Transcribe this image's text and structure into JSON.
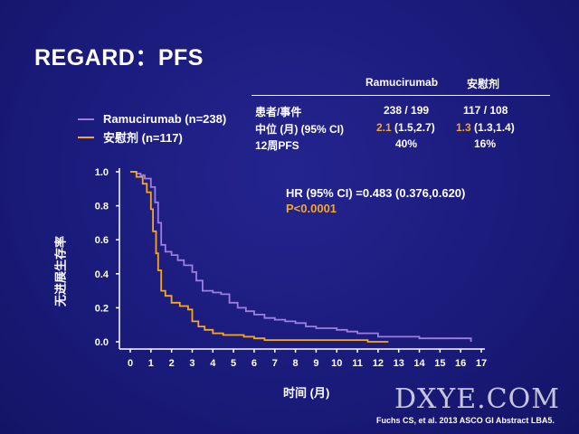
{
  "slide": {
    "title": "REGARD：PFS",
    "source": "Fuchs CS, et al. 2013 ASCO GI Abstract LBA5.",
    "watermark": "DXYE.COM"
  },
  "table": {
    "headers": [
      "Ramucirumab",
      "安慰剂"
    ],
    "rows": [
      {
        "label": "患者/事件",
        "ram": "238 / 199",
        "pla": "117 / 108"
      },
      {
        "label": "中位 (月) (95% CI)",
        "ram_main": "2.1",
        "ram_ci": "(1.5,2.7)",
        "pla_main": "1.3",
        "pla_ci": "(1.3,1.4)"
      },
      {
        "label": "12周PFS",
        "ram": "40%",
        "pla": "16%"
      }
    ]
  },
  "stats": {
    "hr": "HR (95% CI) =0.483 (0.376,0.620)",
    "p": "P<0.0001"
  },
  "colors": {
    "ramucirumab": "#9a7fe0",
    "placebo": "#f5a623",
    "background": "#1a1a7a"
  },
  "chart_data": {
    "type": "line",
    "xlabel": "时间 (月)",
    "ylabel": "无进展生存率",
    "xlim": [
      0,
      17
    ],
    "ylim": [
      0,
      1.0
    ],
    "xticks": [
      "0",
      "1",
      "2",
      "3",
      "4",
      "5",
      "6",
      "7",
      "8",
      "9",
      "10",
      "11",
      "12",
      "13",
      "14",
      "15",
      "16",
      "17"
    ],
    "yticks": [
      "0.0",
      "0.2",
      "0.4",
      "0.6",
      "0.8",
      "1.0"
    ],
    "legend": [
      "Ramucirumab (n=238)",
      "安慰剂 (n=117)"
    ],
    "series": [
      {
        "name": "Ramucirumab (n=238)",
        "x": [
          0,
          0.3,
          0.5,
          0.7,
          1.0,
          1.2,
          1.35,
          1.5,
          1.7,
          2.0,
          2.3,
          2.6,
          3.0,
          3.2,
          3.5,
          4.0,
          4.4,
          4.8,
          5.2,
          5.6,
          6.0,
          6.5,
          7.0,
          7.5,
          8.0,
          8.5,
          9.0,
          9.5,
          10.0,
          10.5,
          11.0,
          11.5,
          12.0,
          13.0,
          14.0,
          15.0,
          16.0,
          16.5
        ],
        "y": [
          1.0,
          0.99,
          0.98,
          0.96,
          0.91,
          0.82,
          0.7,
          0.57,
          0.53,
          0.51,
          0.48,
          0.45,
          0.41,
          0.36,
          0.3,
          0.29,
          0.28,
          0.23,
          0.2,
          0.18,
          0.16,
          0.14,
          0.13,
          0.12,
          0.11,
          0.09,
          0.08,
          0.08,
          0.07,
          0.06,
          0.05,
          0.05,
          0.03,
          0.03,
          0.02,
          0.02,
          0.02,
          0.0
        ]
      },
      {
        "name": "安慰剂 (n=117)",
        "x": [
          0,
          0.3,
          0.6,
          0.8,
          1.0,
          1.1,
          1.25,
          1.35,
          1.5,
          1.7,
          2.0,
          2.4,
          2.8,
          3.0,
          3.3,
          3.6,
          4.0,
          4.5,
          5.0,
          5.5,
          6.0,
          6.5,
          7.0,
          8.0,
          9.0,
          10.0,
          11.0,
          11.5,
          12.0,
          12.5
        ],
        "y": [
          1.0,
          0.97,
          0.93,
          0.88,
          0.78,
          0.65,
          0.52,
          0.42,
          0.3,
          0.27,
          0.23,
          0.21,
          0.19,
          0.12,
          0.09,
          0.07,
          0.05,
          0.04,
          0.04,
          0.03,
          0.02,
          0.01,
          0.01,
          0.01,
          0.01,
          0.01,
          0.01,
          0.0,
          0.0,
          0.0
        ]
      }
    ]
  }
}
